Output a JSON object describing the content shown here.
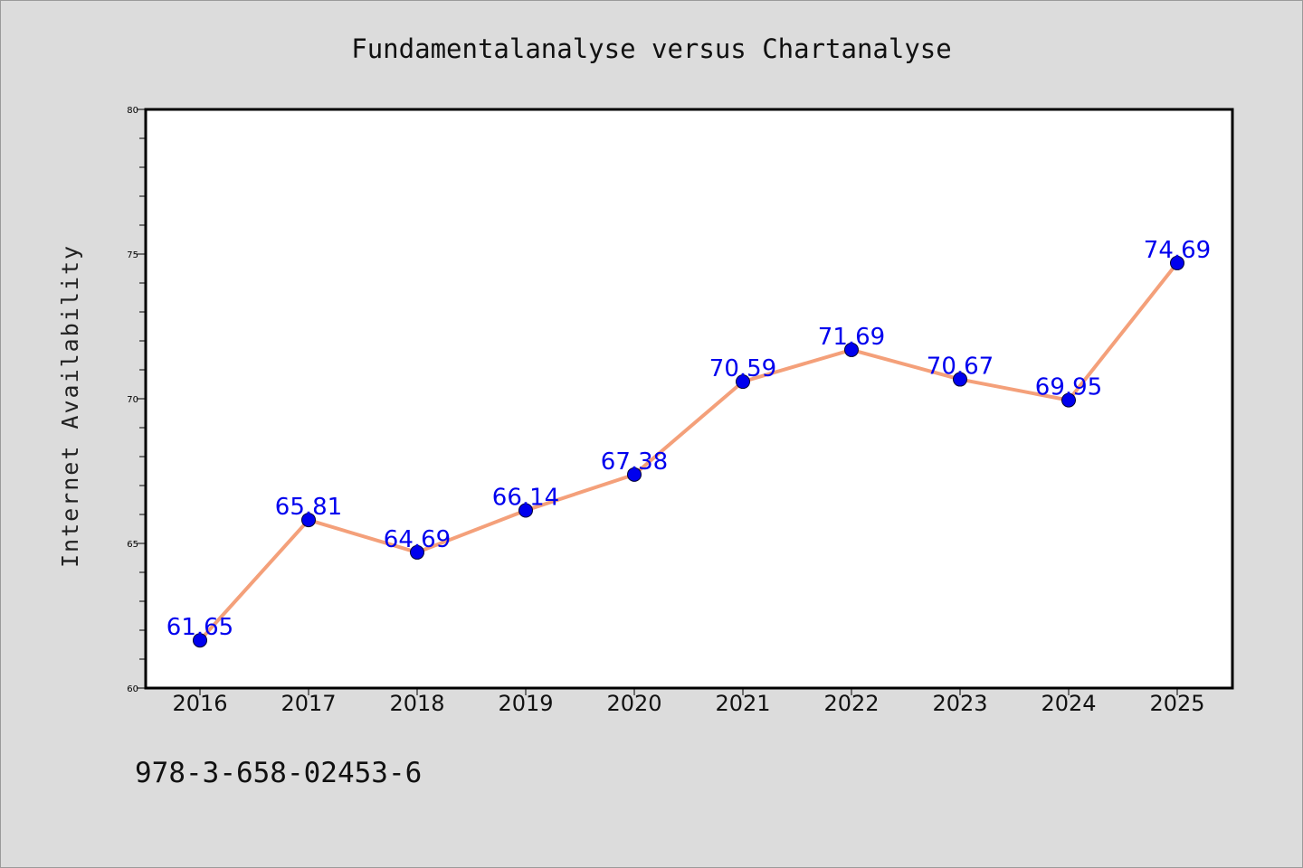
{
  "chart_data": {
    "type": "line",
    "title": "Fundamentalanalyse versus Chartanalyse",
    "xlabel": "",
    "ylabel": "Internet Availability",
    "categories": [
      "2016",
      "2017",
      "2018",
      "2019",
      "2020",
      "2021",
      "2022",
      "2023",
      "2024",
      "2025"
    ],
    "values": [
      61.65,
      65.81,
      64.69,
      66.14,
      67.38,
      70.59,
      71.69,
      70.67,
      69.95,
      74.69
    ],
    "data_labels": [
      "61.65",
      "65.81",
      "64.69",
      "66.14",
      "67.38",
      "70.59",
      "71.69",
      "70.67",
      "69.95",
      "74.69"
    ],
    "ylim": [
      60,
      80
    ],
    "yticks": [
      60,
      65,
      70,
      75,
      80
    ],
    "ytick_labels": [
      "60",
      "65",
      "70",
      "75",
      "80"
    ],
    "grid": false,
    "line_color": "#f4a07a",
    "marker_color": "#0000ee",
    "label_color": "#0000ee",
    "plot_background": "#ffffff",
    "page_background": "#dcdcdc"
  },
  "footer": {
    "isbn": "978-3-658-02453-6"
  }
}
